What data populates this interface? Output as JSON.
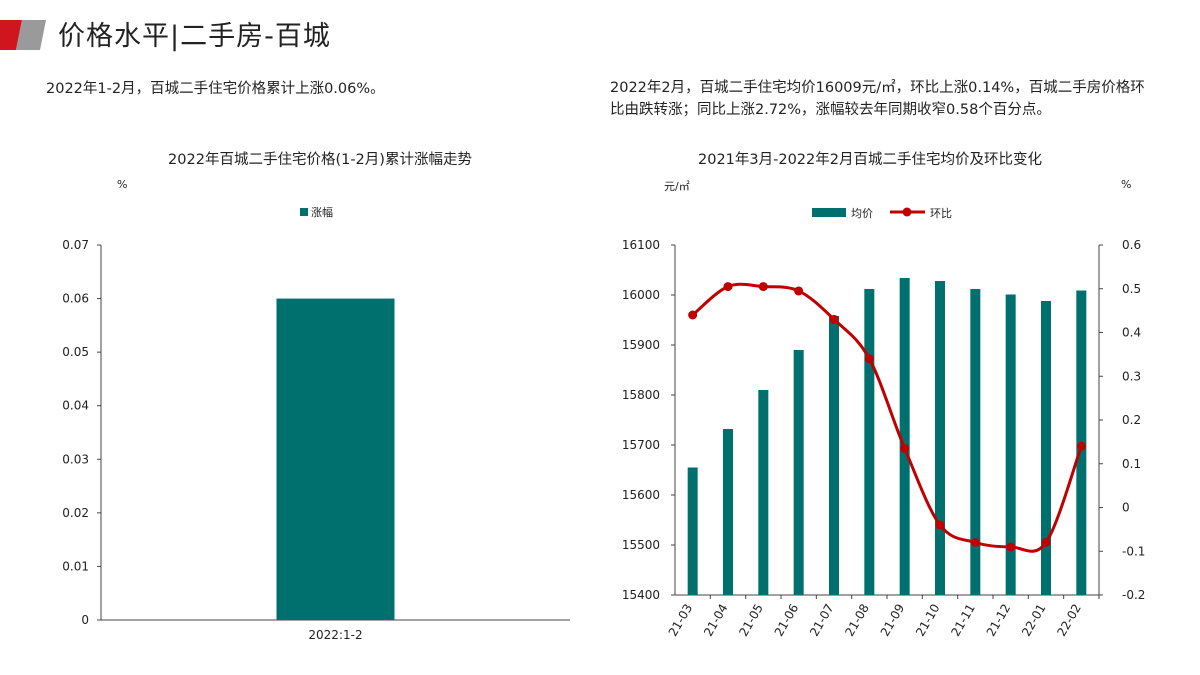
{
  "header": {
    "title": "价格水平|二手房-百城"
  },
  "left": {
    "note": "2022年1-2月，百城二手住宅价格累计上涨0.06%。",
    "chart_data": {
      "type": "bar",
      "title": "2022年百城二手住宅价格(1-2月)累计涨幅走势",
      "ylabel": "%",
      "categories": [
        "2022:1-2"
      ],
      "series": [
        {
          "name": "涨幅",
          "values": [
            0.06
          ],
          "color": "#00706f"
        }
      ],
      "ylim": [
        0,
        0.07
      ],
      "yticks": [
        0,
        0.01,
        0.02,
        0.03,
        0.04,
        0.05,
        0.06,
        0.07
      ],
      "ytick_labels": [
        "0",
        "0.01",
        "0.02",
        "0.03",
        "0.04",
        "0.05",
        "0.06",
        "0.07"
      ],
      "legend": "top-center",
      "grid": false
    }
  },
  "right": {
    "note": "2022年2月，百城二手住宅均价16009元/㎡，环比上涨0.14%，百城二手房价格环比由跌转涨；同比上涨2.72%，涨幅较去年同期收窄0.58个百分点。",
    "chart_data": {
      "type": "bar+line",
      "title": "2021年3月-2022年2月百城二手住宅均价及环比变化",
      "ylabel_left": "元/㎡",
      "ylabel_right": "%",
      "categories": [
        "21-03",
        "21-04",
        "21-05",
        "21-06",
        "21-07",
        "21-08",
        "21-09",
        "21-10",
        "21-11",
        "21-12",
        "22-01",
        "22-02"
      ],
      "series": [
        {
          "name": "均价",
          "type": "bar",
          "axis": "left",
          "color": "#00706f",
          "values": [
            15655,
            15732,
            15810,
            15890,
            15958,
            16012,
            16034,
            16028,
            16012,
            16001,
            15988,
            16009
          ]
        },
        {
          "name": "环比",
          "type": "line",
          "axis": "right",
          "color": "#c00000",
          "values": [
            0.44,
            0.505,
            0.505,
            0.495,
            0.43,
            0.34,
            0.135,
            -0.04,
            -0.08,
            -0.09,
            -0.08,
            0.14
          ]
        }
      ],
      "ylim_left": [
        15400,
        16100
      ],
      "yticks_left": [
        15400,
        15500,
        15600,
        15700,
        15800,
        15900,
        16000,
        16100
      ],
      "ylim_right": [
        -0.2,
        0.6
      ],
      "yticks_right": [
        -0.2,
        -0.1,
        0,
        0.1,
        0.2,
        0.3,
        0.4,
        0.5,
        0.6
      ],
      "ytick_labels_right": [
        "-0.2",
        "-0.1",
        "0",
        "0.1",
        "0.2",
        "0.3",
        "0.4",
        "0.5",
        "0.6"
      ],
      "legend": "top-center",
      "grid": false
    }
  }
}
